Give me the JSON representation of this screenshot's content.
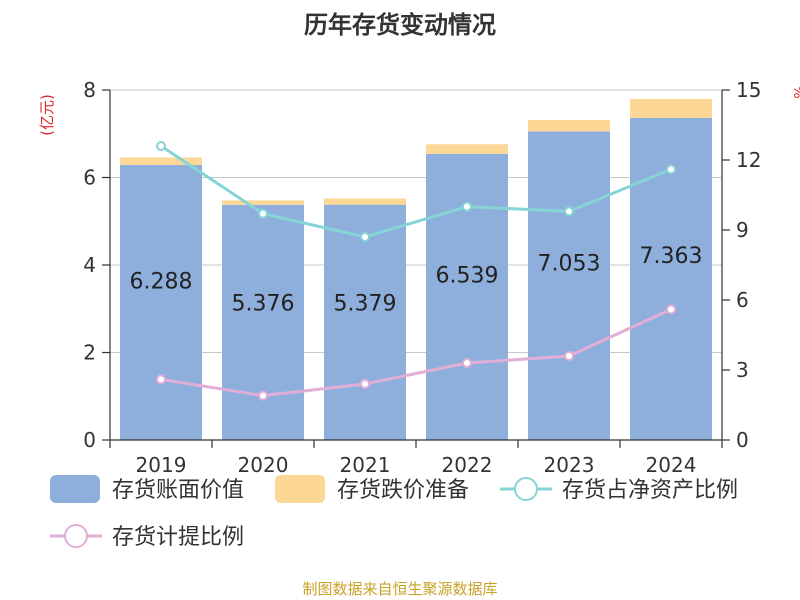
{
  "chart_data": {
    "type": "bar",
    "title": "历年存货变动情况",
    "categories": [
      "2019",
      "2020",
      "2021",
      "2022",
      "2023",
      "2024"
    ],
    "left_axis": {
      "label": "(亿元)",
      "min": 0,
      "max": 8,
      "ticks": [
        "0",
        "2",
        "4",
        "6",
        "8"
      ]
    },
    "right_axis": {
      "label": "%",
      "min": 0,
      "max": 15,
      "ticks": [
        "0",
        "3",
        "6",
        "9",
        "12",
        "15"
      ]
    },
    "grid": true,
    "legend_position": "bottom",
    "series": [
      {
        "name": "存货账面价值",
        "kind": "bar",
        "axis": "left",
        "color": "#8eaedb",
        "values": [
          6.288,
          5.376,
          5.379,
          6.539,
          7.053,
          7.363
        ],
        "labels": [
          "6.288",
          "5.376",
          "5.379",
          "6.539",
          "7.053",
          "7.363"
        ]
      },
      {
        "name": "存货跌价准备",
        "kind": "bar-stacked",
        "axis": "left",
        "color": "#fdd796",
        "values": [
          0.17,
          0.1,
          0.14,
          0.22,
          0.26,
          0.43
        ]
      },
      {
        "name": "存货占净资产比例",
        "kind": "line",
        "axis": "right",
        "color": "#86d4d6",
        "values": [
          12.6,
          9.7,
          8.7,
          10.0,
          9.8,
          11.6
        ]
      },
      {
        "name": "存货计提比例",
        "kind": "line",
        "axis": "right",
        "color": "#e1afd6",
        "values": [
          2.6,
          1.9,
          2.4,
          3.3,
          3.6,
          5.6
        ]
      }
    ],
    "source": "制图数据来自恒生聚源数据库"
  }
}
